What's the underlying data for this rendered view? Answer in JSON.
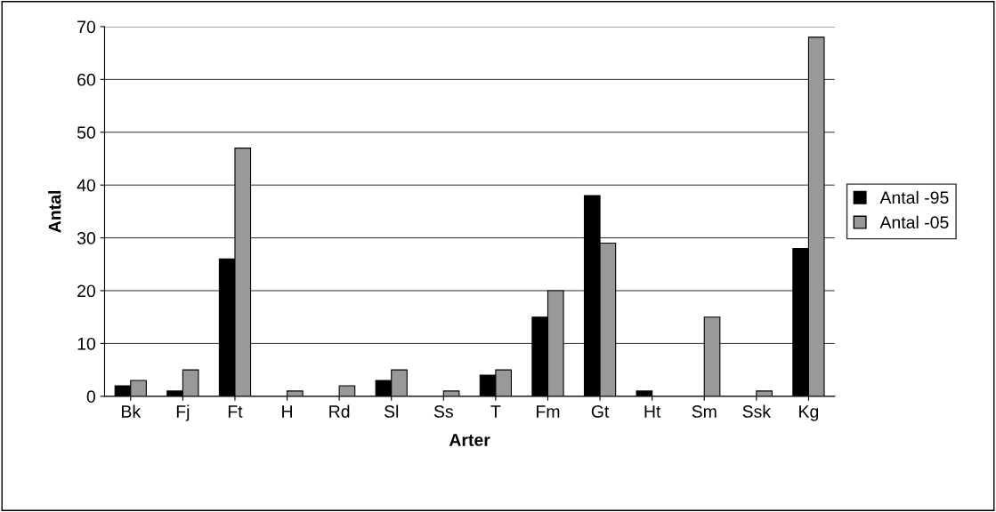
{
  "chart_data": {
    "type": "bar",
    "xlabel": "Arter",
    "ylabel": "Antal",
    "categories": [
      "Bk",
      "Fj",
      "Ft",
      "H",
      "Rd",
      "Sl",
      "Ss",
      "T",
      "Fm",
      "Gt",
      "Ht",
      "Sm",
      "Ssk",
      "Kg"
    ],
    "series": [
      {
        "name": "Antal -95",
        "color": "#000000",
        "values": [
          2,
          1,
          26,
          0,
          0,
          3,
          0,
          4,
          15,
          38,
          1,
          0,
          0,
          28
        ]
      },
      {
        "name": "Antal -05",
        "color": "#999999",
        "values": [
          3,
          5,
          47,
          1,
          2,
          5,
          1,
          5,
          20,
          29,
          0,
          15,
          1,
          68
        ]
      }
    ],
    "ylim": [
      0,
      70
    ],
    "yticks": [
      0,
      10,
      20,
      30,
      40,
      50,
      60,
      70
    ],
    "grid": "y",
    "legend": "right"
  }
}
